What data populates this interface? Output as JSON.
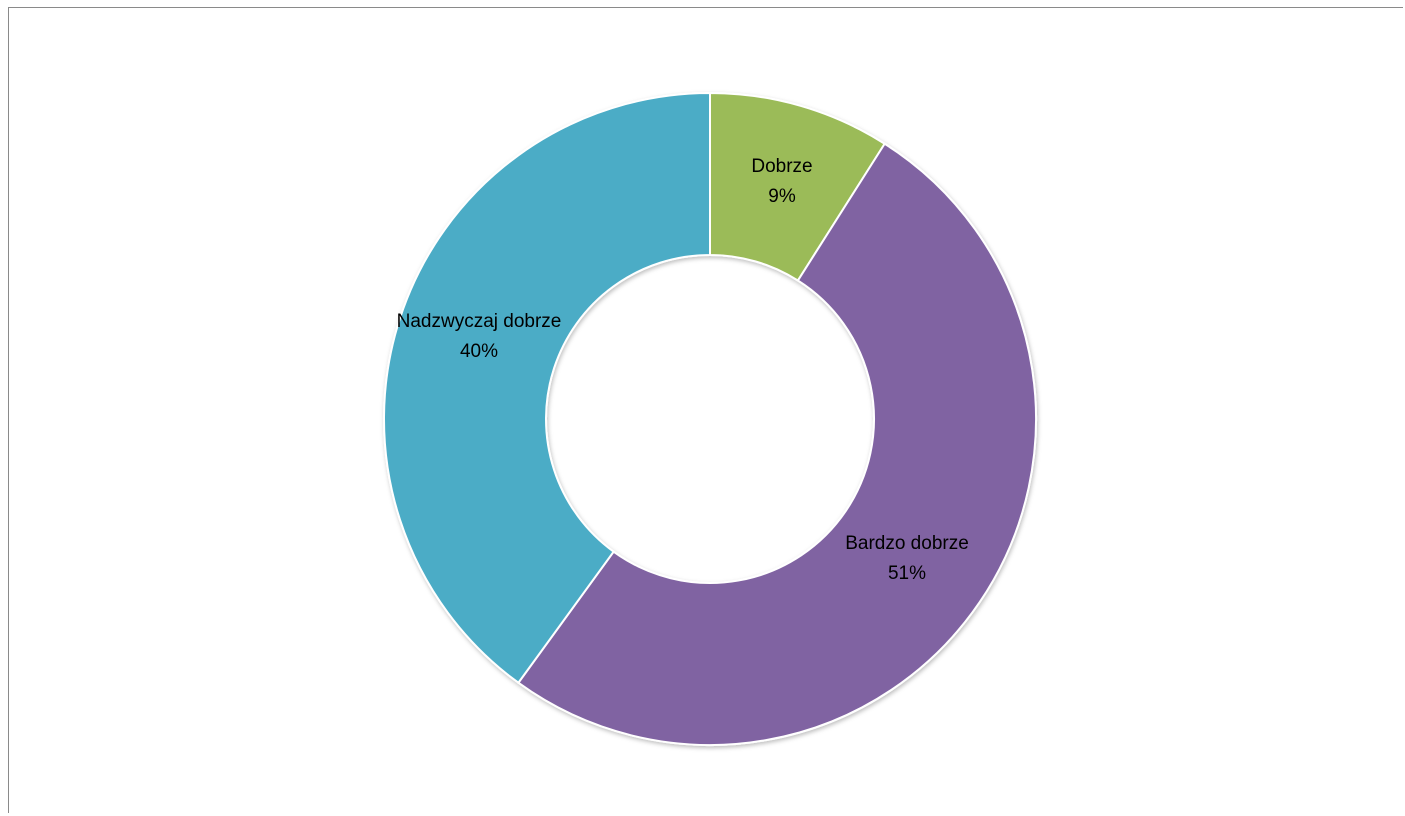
{
  "chart_data": {
    "type": "pie",
    "variant": "donut",
    "title": "",
    "legend": "none",
    "slices": [
      {
        "label": "Dobrze",
        "value": 9,
        "value_label": "9%",
        "color": "#9BBB59"
      },
      {
        "label": "Bardzo dobrze",
        "value": 51,
        "value_label": "51%",
        "color": "#8064A2"
      },
      {
        "label": "Nadzwyczaj dobrze",
        "value": 40,
        "value_label": "40%",
        "color": "#4BACC6"
      }
    ]
  }
}
